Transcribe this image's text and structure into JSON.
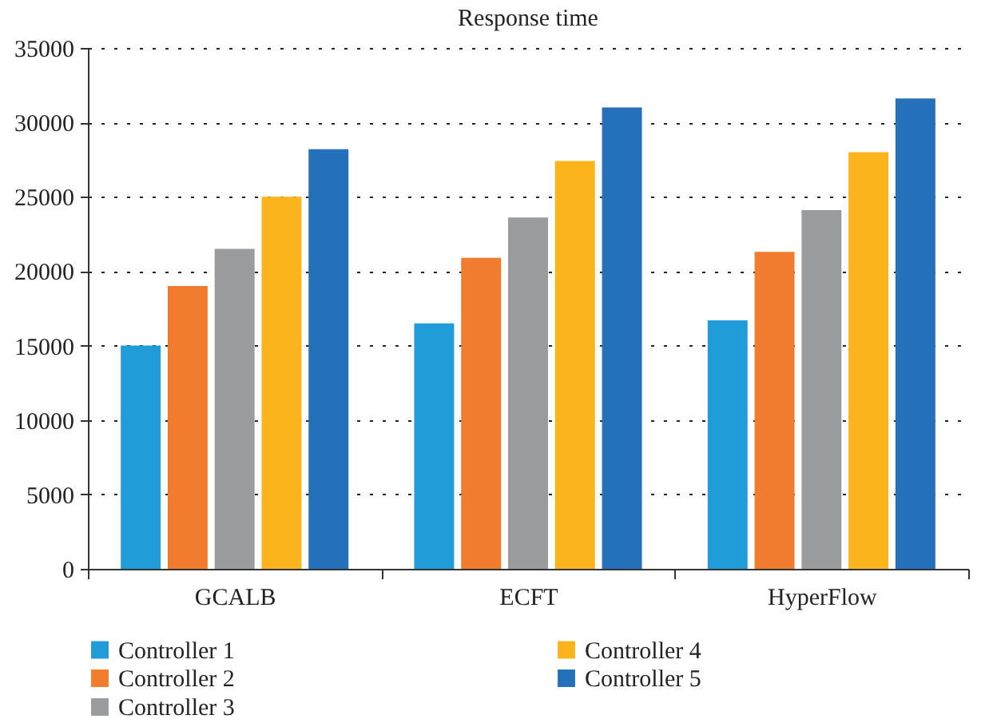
{
  "chart_data": {
    "type": "bar",
    "title": "Response time",
    "categories": [
      "GCALB",
      "ECFT",
      "HyperFlow"
    ],
    "series": [
      {
        "name": "Controller 1",
        "color": "#209cd8",
        "values": [
          15000,
          16500,
          16700
        ]
      },
      {
        "name": "Controller 2",
        "color": "#f27c2e",
        "values": [
          19000,
          20900,
          21300
        ]
      },
      {
        "name": "Controller 3",
        "color": "#999b9c",
        "values": [
          21500,
          23600,
          24100
        ]
      },
      {
        "name": "Controller 4",
        "color": "#fbb41c",
        "values": [
          25000,
          27400,
          28000
        ]
      },
      {
        "name": "Controller 5",
        "color": "#2471ba",
        "values": [
          28200,
          31000,
          31600
        ]
      }
    ],
    "ylim": [
      0,
      35000
    ],
    "yticks": [
      0,
      5000,
      10000,
      15000,
      20000,
      25000,
      30000,
      35000
    ],
    "grid": "y",
    "legend": "bottom"
  }
}
